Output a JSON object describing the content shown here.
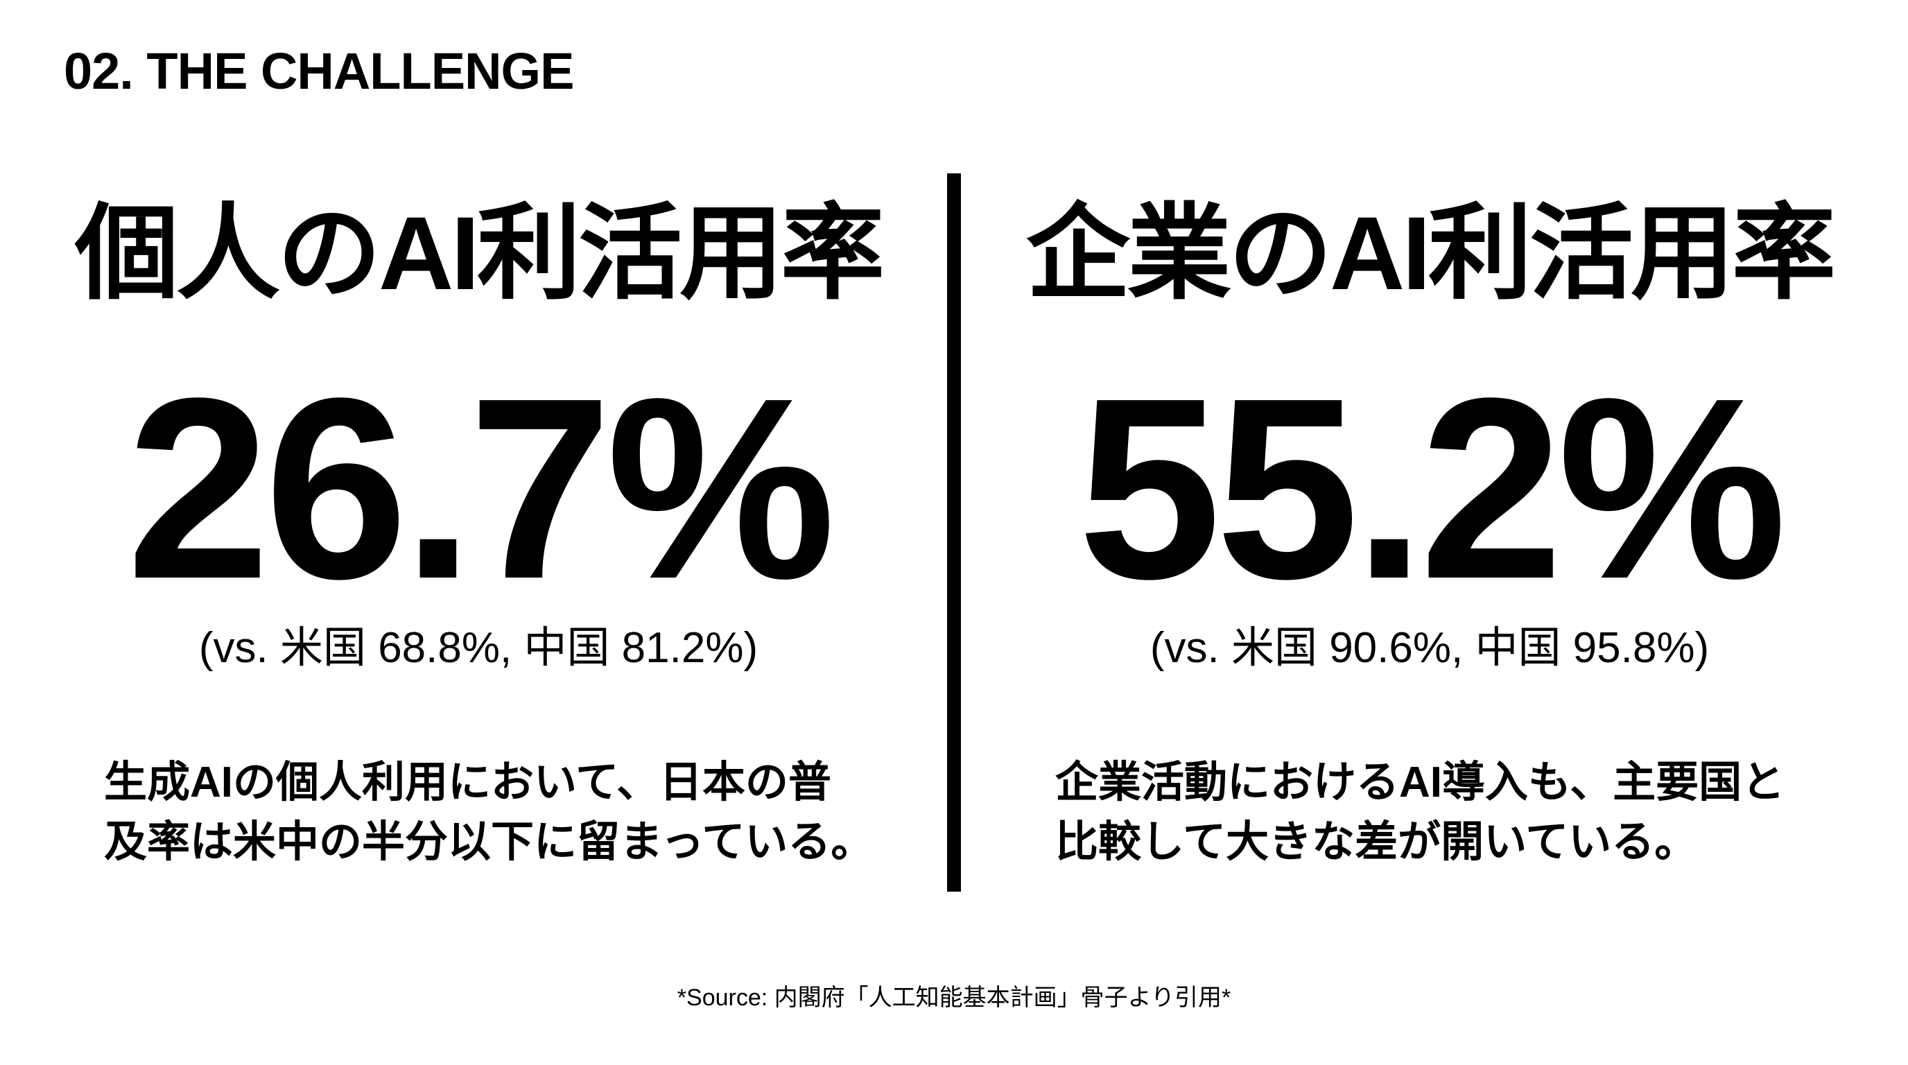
{
  "slide": {
    "section_title": "02. THE CHALLENGE",
    "colors": {
      "background": "#ffffff",
      "text": "#000000",
      "divider": "#000000"
    }
  },
  "left_panel": {
    "heading": "個人のAI利活用率",
    "stat": "26.7%",
    "comparison": "(vs. 米国 68.8%, 中国 81.2%)",
    "description_lines": [
      "生成AIの個人利用において、日本の普",
      "及率は米中の半分以下に留まっている。"
    ]
  },
  "right_panel": {
    "heading": "企業のAI利活用率",
    "stat": "55.2%",
    "comparison": "(vs. 米国 90.6%, 中国 95.8%)",
    "description_lines": [
      "企業活動におけるAI導入も、主要国と",
      "比較して大きな差が開いている。"
    ]
  },
  "footer": {
    "source": "*Source: 内閣府「人工知能基本計画」骨子より引用*"
  }
}
